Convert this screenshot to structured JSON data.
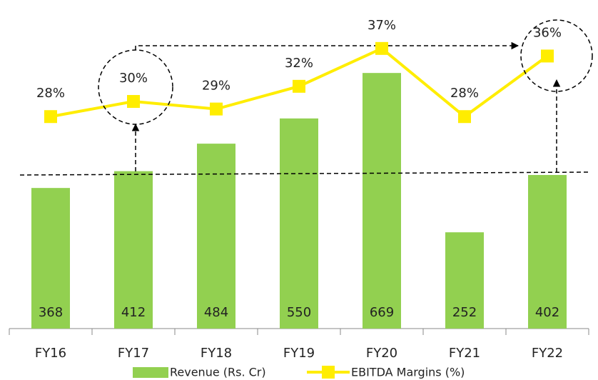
{
  "chart_data": {
    "type": "bar-line",
    "categories": [
      "FY16",
      "FY17",
      "FY18",
      "FY19",
      "FY20",
      "FY21",
      "FY22"
    ],
    "series": [
      {
        "name": "Revenue (Rs. Cr)",
        "type": "bar",
        "color": "#92d050",
        "values": [
          368,
          412,
          484,
          550,
          669,
          252,
          402
        ]
      },
      {
        "name": "EBITDA Margins (%)",
        "type": "line",
        "axis": "y2",
        "color": "#ffed00",
        "values": [
          28,
          30,
          29,
          32,
          37,
          28,
          36
        ],
        "value_labels": [
          "28%",
          "30%",
          "29%",
          "32%",
          "37%",
          "28%",
          "36%"
        ]
      }
    ],
    "ylim": [
      0,
      860
    ],
    "y2lim": [
      0,
      43.4
    ],
    "legend": "bottom"
  }
}
